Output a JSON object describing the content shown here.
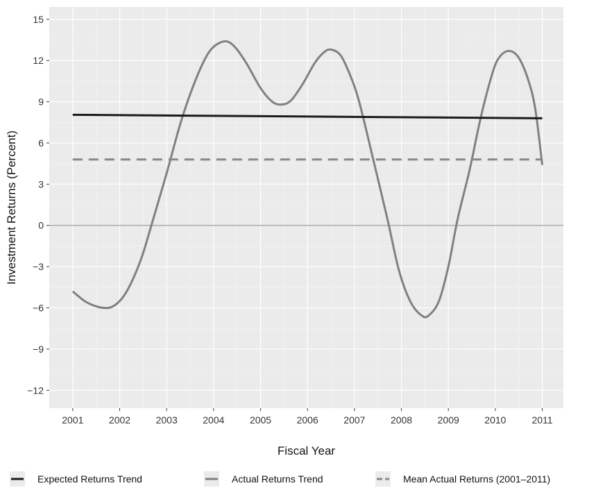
{
  "chart_data": {
    "type": "line",
    "xlabel": "Fiscal Year",
    "ylabel": "Investment Returns (Percent)",
    "x_ticks": [
      2001,
      2002,
      2003,
      2004,
      2005,
      2006,
      2007,
      2008,
      2009,
      2010,
      2011
    ],
    "y_ticks": [
      15,
      12,
      9,
      6,
      3,
      0,
      -3,
      -6,
      -9,
      -12
    ],
    "y_tick_labels": [
      "15",
      "12",
      "9",
      "6",
      "3",
      "0",
      "−3",
      "−6",
      "−9",
      "−12"
    ],
    "xlim": [
      2000.5,
      2011.45
    ],
    "ylim": [
      -13.3,
      15.9
    ],
    "grid": true,
    "zero_line": true,
    "legend_position": "bottom",
    "series": [
      {
        "name": "Expected Returns Trend",
        "color": "#1a1a1a",
        "style": "solid",
        "x": [
          2001,
          2011
        ],
        "y": [
          8.05,
          7.8
        ]
      },
      {
        "name": "Actual Returns Trend",
        "color": "#808080",
        "style": "solid",
        "x": [
          2001,
          2001.3,
          2001.65,
          2001.9,
          2002.15,
          2002.45,
          2002.7,
          2003.0,
          2003.3,
          2003.55,
          2003.8,
          2004.0,
          2004.25,
          2004.45,
          2004.7,
          2005.0,
          2005.25,
          2005.45,
          2005.65,
          2005.9,
          2006.15,
          2006.35,
          2006.5,
          2006.7,
          2006.9,
          2007.1,
          2007.4,
          2007.7,
          2007.95,
          2008.2,
          2008.45,
          2008.6,
          2008.8,
          2009.0,
          2009.2,
          2009.45,
          2009.7,
          2009.95,
          2010.1,
          2010.3,
          2010.5,
          2010.7,
          2010.85,
          2011.0
        ],
        "y": [
          -4.8,
          -5.6,
          -6.0,
          -5.8,
          -4.8,
          -2.5,
          0.3,
          3.8,
          7.5,
          10.0,
          12.0,
          13.0,
          13.4,
          13.0,
          11.8,
          10.0,
          9.0,
          8.8,
          9.1,
          10.3,
          11.8,
          12.6,
          12.8,
          12.4,
          11.0,
          9.0,
          4.8,
          0.5,
          -3.3,
          -5.6,
          -6.6,
          -6.5,
          -5.5,
          -3.0,
          0.5,
          4.0,
          8.0,
          11.2,
          12.3,
          12.7,
          12.2,
          10.6,
          8.5,
          4.4
        ]
      },
      {
        "name": "Mean Actual Returns (2001–2011)",
        "color": "#888888",
        "style": "dashed",
        "x": [
          2001,
          2011
        ],
        "y": [
          4.8,
          4.8
        ]
      }
    ]
  }
}
